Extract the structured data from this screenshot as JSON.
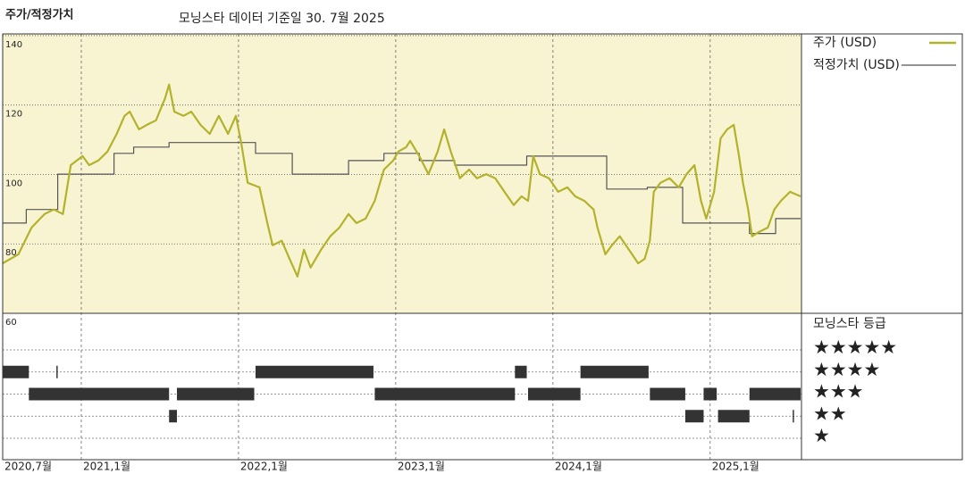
{
  "chart_data": {
    "type": "line",
    "heading": "주가/적정가치",
    "title": "모닝스타 데이터 기준일 30. 7월 2025",
    "xlim": [
      0,
      60.97
    ],
    "xticks": [
      {
        "value": 0,
        "label": "2020,7월"
      },
      {
        "value": 6,
        "label": "2021,1월"
      },
      {
        "value": 18,
        "label": "2022,1월"
      },
      {
        "value": 30,
        "label": "2023,1월"
      },
      {
        "value": 42,
        "label": "2024,1월"
      },
      {
        "value": 54,
        "label": "2025,1월"
      }
    ],
    "ylim": [
      60,
      140.5
    ],
    "yticks": [
      60,
      80,
      100,
      120,
      140
    ],
    "grid": true,
    "background": "#f8f4d2",
    "series": [
      {
        "name": "주가 (USD)",
        "color": "#b3b22c",
        "x": [
          0,
          1.2,
          2.2,
          3.2,
          3.9,
          4.6,
          5.2,
          6.1,
          6.6,
          7.3,
          8.0,
          8.7,
          9.3,
          9.7,
          10.4,
          11.0,
          11.7,
          12.4,
          12.7,
          13.1,
          13.8,
          14.4,
          15.1,
          15.8,
          16.5,
          17.2,
          17.8,
          18.2,
          18.7,
          19.6,
          20.2,
          20.6,
          21.3,
          21.9,
          22.5,
          23.0,
          23.5,
          24.3,
          25.0,
          25.7,
          26.4,
          27.0,
          27.7,
          28.4,
          29.1,
          29.8,
          30.2,
          30.8,
          31.1,
          31.8,
          32.5,
          33.2,
          33.7,
          34.2,
          34.9,
          35.6,
          36.2,
          36.9,
          37.6,
          38.3,
          39.0,
          39.6,
          40.1,
          40.5,
          41.0,
          41.7,
          42.4,
          43.1,
          43.7,
          44.4,
          45.1,
          45.4,
          46.0,
          46.5,
          47.1,
          47.8,
          48.5,
          49.0,
          49.4,
          49.7,
          50.2,
          50.9,
          51.6,
          52.2,
          52.8,
          53.3,
          53.7,
          54.3,
          54.8,
          55.3,
          55.8,
          56.2,
          56.5,
          56.9,
          57.2,
          57.7,
          58.4,
          58.9,
          59.4,
          60.1,
          60.9
        ],
        "values": [
          74.4,
          77.0,
          84.7,
          88.6,
          89.9,
          88.6,
          102.7,
          105.3,
          102.7,
          104.0,
          106.6,
          111.7,
          116.9,
          118.1,
          113.0,
          114.3,
          115.6,
          122.0,
          125.9,
          118.1,
          116.9,
          118.1,
          114.3,
          111.7,
          116.9,
          111.7,
          116.9,
          109.2,
          97.6,
          96.3,
          86.0,
          79.6,
          80.9,
          75.7,
          70.6,
          78.3,
          73.2,
          78.3,
          82.2,
          84.7,
          88.6,
          86.0,
          87.3,
          92.4,
          101.4,
          104.0,
          106.6,
          107.9,
          109.7,
          105.3,
          100.1,
          106.6,
          113.0,
          106.6,
          98.9,
          101.4,
          98.9,
          100.1,
          98.9,
          95.0,
          91.2,
          93.7,
          92.4,
          105.3,
          100.1,
          98.9,
          95.0,
          96.3,
          93.7,
          92.4,
          89.9,
          84.7,
          77.0,
          79.6,
          82.2,
          78.3,
          74.4,
          75.7,
          80.9,
          95.0,
          97.6,
          98.9,
          96.3,
          100.1,
          102.7,
          92.4,
          87.3,
          95.0,
          110.4,
          113.0,
          114.3,
          105.3,
          97.6,
          89.9,
          82.2,
          83.4,
          84.7,
          89.9,
          92.4,
          95.0,
          93.7
        ]
      },
      {
        "name": "적정가치 (USD)",
        "color": "#555555",
        "x": [
          0,
          1.8,
          1.8,
          4.2,
          4.2,
          8.5,
          8.5,
          10,
          10,
          12.7,
          12.7,
          19.3,
          19.3,
          22.1,
          22.1,
          26.4,
          26.4,
          29.1,
          29.1,
          31.8,
          31.8,
          34.5,
          34.5,
          40,
          40,
          46.1,
          46.1,
          49.2,
          49.2,
          51.9,
          51.9,
          57,
          57,
          59,
          59,
          60.9
        ],
        "values": [
          86,
          86,
          89.9,
          89.9,
          100.1,
          100.1,
          106.1,
          106.1,
          107.9,
          107.9,
          109.2,
          109.2,
          106.1,
          106.1,
          100.1,
          100.1,
          104.0,
          104.0,
          106.1,
          106.1,
          104.0,
          104.0,
          102.7,
          102.7,
          105.3,
          105.3,
          95.8,
          95.8,
          96.3,
          96.3,
          86.0,
          86.0,
          83,
          83,
          87.3,
          87.3
        ]
      }
    ],
    "rating": {
      "title": "모닝스타 등급",
      "color": "#333333",
      "rows": [
        {
          "label": "★★★★★",
          "periods": []
        },
        {
          "label": "★★★★",
          "periods": [
            [
              0,
              2.0
            ],
            [
              4.1,
              4.2
            ],
            [
              19.3,
              28.3
            ],
            [
              39.1,
              40.0
            ],
            [
              44.1,
              49.3
            ]
          ]
        },
        {
          "label": "★★★",
          "periods": [
            [
              2.0,
              12.7
            ],
            [
              13.3,
              19.2
            ],
            [
              28.4,
              39.1
            ],
            [
              40.1,
              44.1
            ],
            [
              49.4,
              52.1
            ],
            [
              53.5,
              54.5
            ],
            [
              57.0,
              60.9
            ]
          ]
        },
        {
          "label": "★★",
          "periods": [
            [
              12.7,
              13.3
            ],
            [
              52.1,
              53.5
            ],
            [
              54.6,
              57.0
            ],
            [
              60.3,
              60.4
            ]
          ]
        },
        {
          "label": "★",
          "periods": []
        }
      ]
    }
  }
}
